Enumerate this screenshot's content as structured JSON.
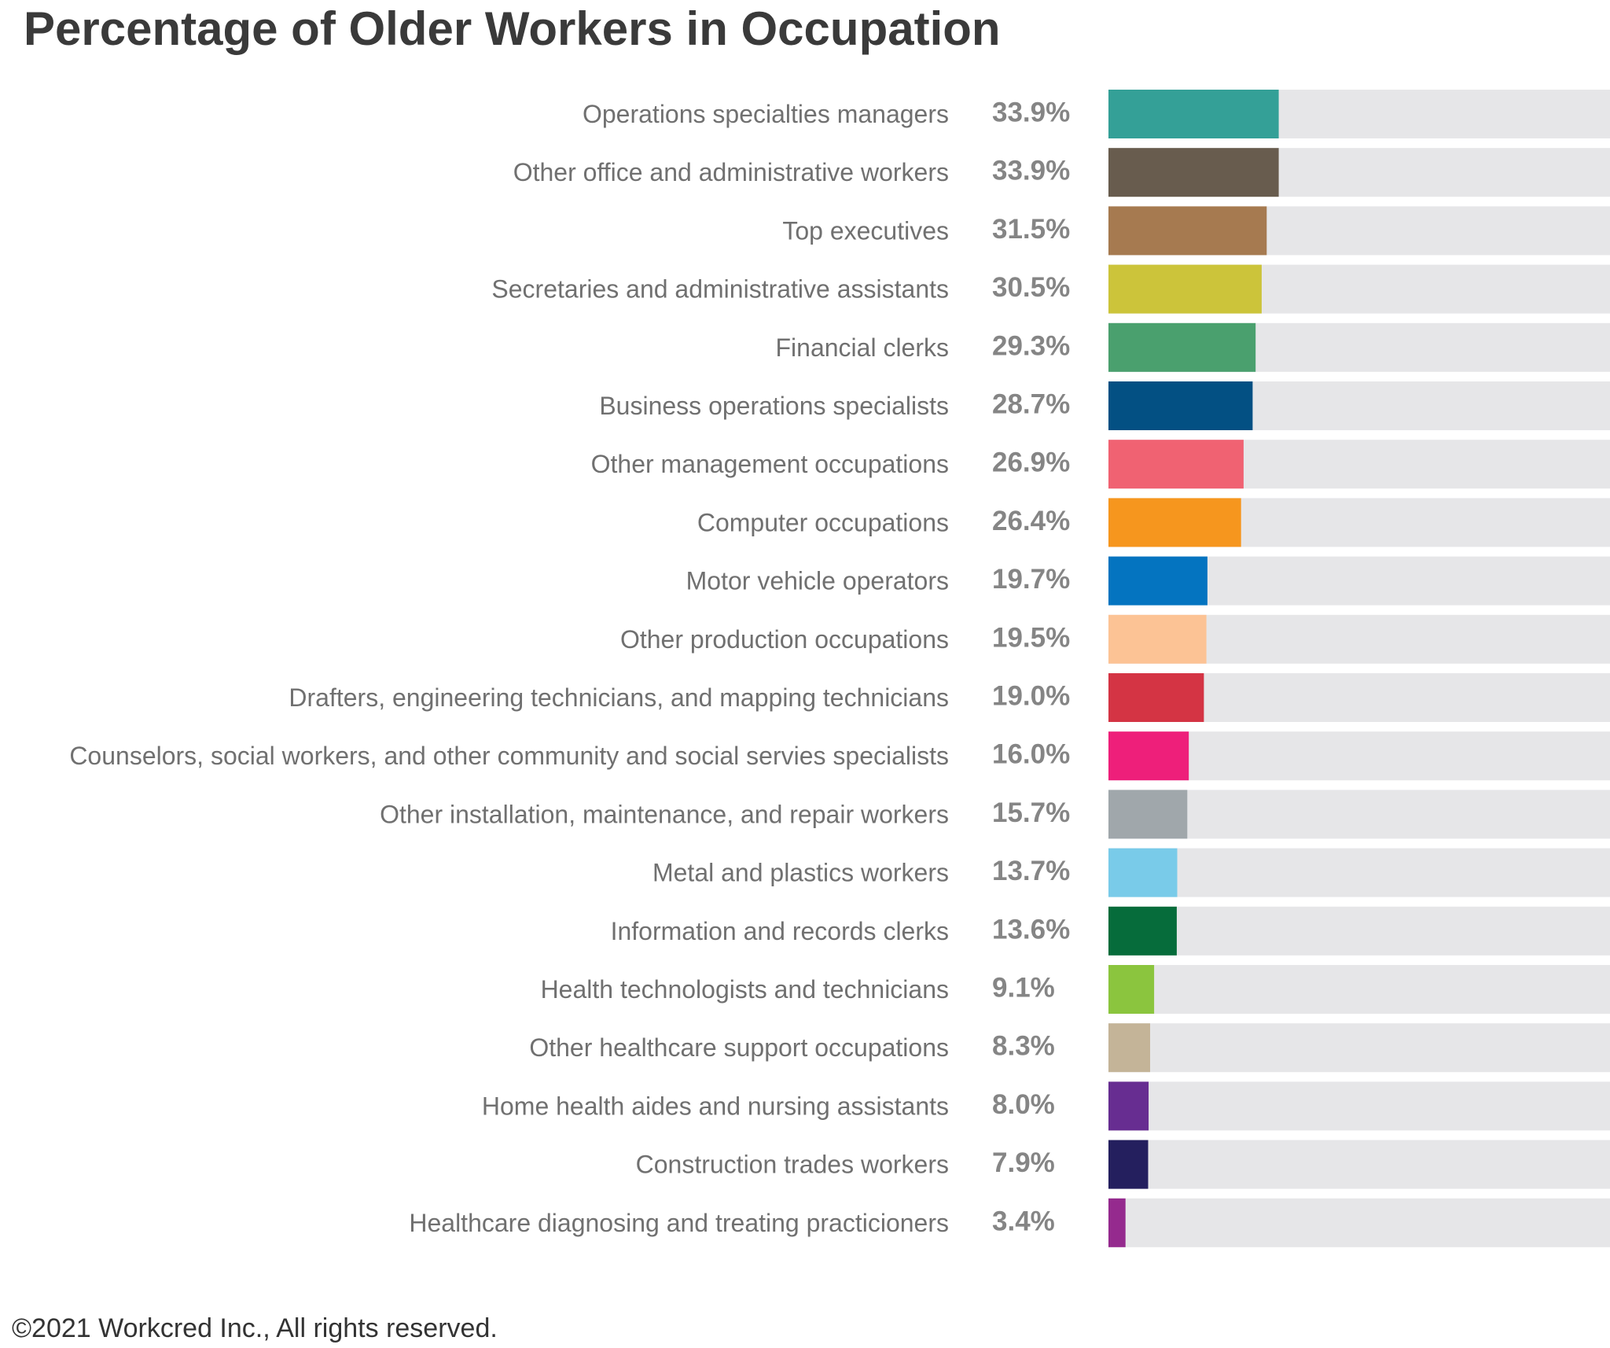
{
  "copyright": "©2021 Workcred Inc., All rights reserved.",
  "chart_data": {
    "type": "bar",
    "orientation": "horizontal",
    "title": "Percentage of Older Workers in Occupation",
    "xlim": [
      0,
      100
    ],
    "grid": false,
    "value_suffix": "%",
    "background_track_color": "#e6e6e8",
    "categories": [
      "Operations specialties managers",
      "Other office and administrative workers",
      "Top executives",
      "Secretaries and administrative assistants",
      "Financial clerks",
      "Business operations specialists",
      "Other management occupations",
      "Computer occupations",
      "Motor vehicle operators",
      "Other production occupations",
      "Drafters, engineering technicians, and mapping technicians",
      "Counselors, social workers, and other community and social servies specialists",
      "Other installation, maintenance, and repair workers",
      "Metal and plastics workers",
      "Information and records clerks",
      "Health technologists and technicians",
      "Other healthcare support occupations",
      "Home health aides and nursing assistants",
      "Construction trades workers",
      "Healthcare diagnosing and treating practicioners"
    ],
    "values": [
      33.9,
      33.9,
      31.5,
      30.5,
      29.3,
      28.7,
      26.9,
      26.4,
      19.7,
      19.5,
      19.0,
      16.0,
      15.7,
      13.7,
      13.6,
      9.1,
      8.3,
      8.0,
      7.9,
      3.4
    ],
    "value_labels": [
      "33.9%",
      "33.9%",
      "31.5%",
      "30.5%",
      "29.3%",
      "28.7%",
      "26.9%",
      "26.4%",
      "19.7%",
      "19.5%",
      "19.0%",
      "16.0%",
      "15.7%",
      "13.7%",
      "13.6%",
      "9.1%",
      "8.3%",
      "8.0%",
      "7.9%",
      "3.4%"
    ],
    "colors": [
      "#34a097",
      "#685c4e",
      "#a67a50",
      "#ccc43a",
      "#4aa06e",
      "#035083",
      "#f06272",
      "#f6961e",
      "#0474c0",
      "#fcc395",
      "#d43444",
      "#ee1f7a",
      "#a0a7ab",
      "#79cbe9",
      "#066c3b",
      "#8bc53e",
      "#c4b498",
      "#672d91",
      "#241f5e",
      "#952a8e"
    ]
  }
}
